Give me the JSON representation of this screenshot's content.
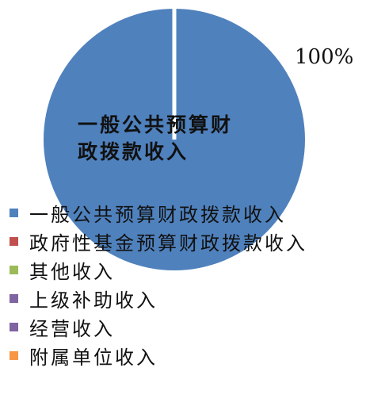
{
  "chart_data": {
    "type": "pie",
    "title": "",
    "slices": [
      {
        "label": "一般公共预算财政拨款收入",
        "value": 100,
        "color": "#4F81BD"
      },
      {
        "label": "政府性基金预算财政拨款收入",
        "value": 0,
        "color": "#C0504D"
      },
      {
        "label": "其他收入",
        "value": 0,
        "color": "#9BBB59"
      },
      {
        "label": "上级补助收入",
        "value": 0,
        "color": "#8064A2"
      },
      {
        "label": "经营收入",
        "value": 0,
        "color": "#8064A2"
      },
      {
        "label": "附属单位收入",
        "value": 0,
        "color": "#F79646"
      }
    ],
    "data_labels": {
      "percent": "100%",
      "inner_label_line1": "一般公共预算财",
      "inner_label_line2": "政拨款收入"
    },
    "legend_position": "bottom-left"
  }
}
